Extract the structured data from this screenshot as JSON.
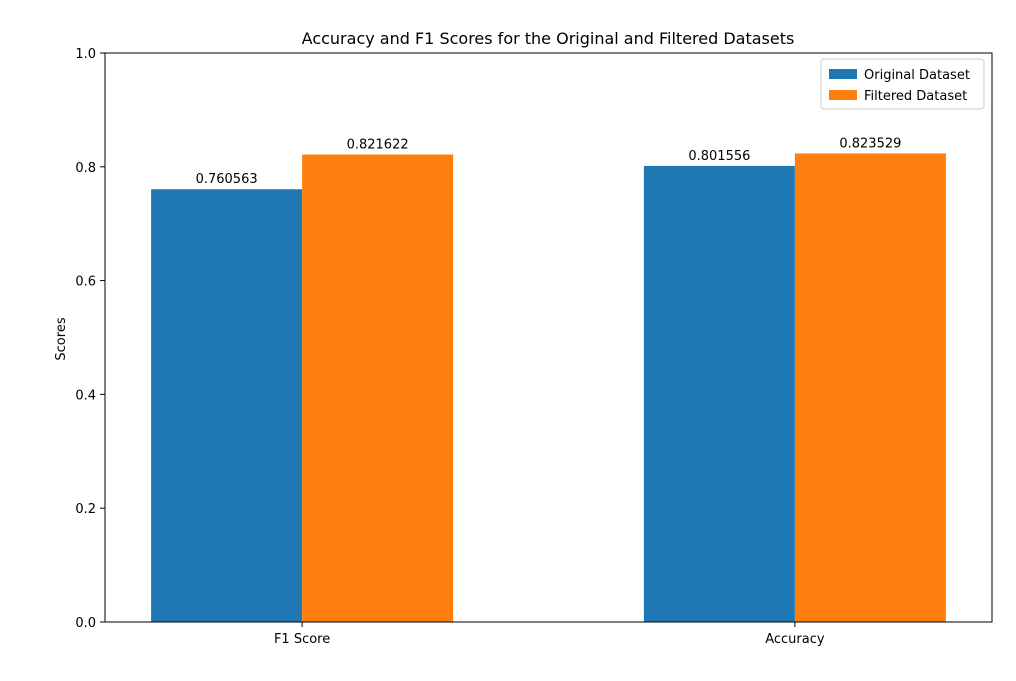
{
  "chart_data": {
    "type": "bar",
    "title": "Accuracy and F1 Scores for the Original and Filtered Datasets",
    "xlabel": "",
    "ylabel": "Scores",
    "categories": [
      "F1 Score",
      "Accuracy"
    ],
    "series": [
      {
        "name": "Original Dataset",
        "values": [
          0.760563,
          0.801556
        ],
        "labels": [
          "0.760563",
          "0.801556"
        ],
        "color": "#1f77b4"
      },
      {
        "name": "Filtered Dataset",
        "values": [
          0.821622,
          0.823529
        ],
        "labels": [
          "0.821622",
          "0.823529"
        ],
        "color": "#ff7f0e"
      }
    ],
    "ylim": [
      0,
      1.0
    ],
    "yticks": [
      {
        "value": 0.0,
        "label": "0.0"
      },
      {
        "value": 0.2,
        "label": "0.2"
      },
      {
        "value": 0.4,
        "label": "0.4"
      },
      {
        "value": 0.6,
        "label": "0.6"
      },
      {
        "value": 0.8,
        "label": "0.8"
      },
      {
        "value": 1.0,
        "label": "1.0"
      }
    ],
    "grid": false,
    "legend_position": "top-right"
  }
}
